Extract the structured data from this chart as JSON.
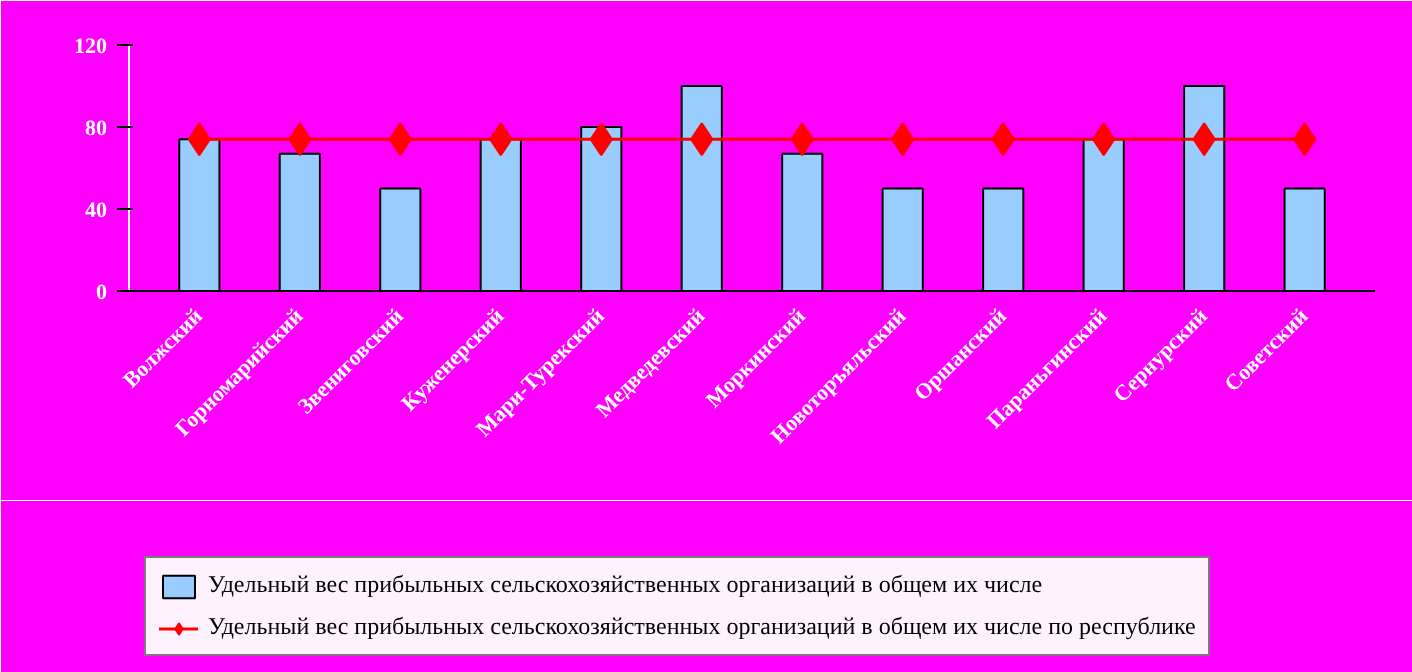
{
  "chart_data": {
    "type": "bar",
    "categories": [
      "Волжский",
      "Горномарийский",
      "Звениговский",
      "Куженерский",
      "Мари-Турекский",
      "Медведевский",
      "Моркинский",
      "Новоторъяльский",
      "Оршанский",
      "Параньгинский",
      "Сернурский",
      "Советский"
    ],
    "series": [
      {
        "name": "Удельный вес прибыльных сельскохозяйственных организаций в общем их числе",
        "color": "#99ccff",
        "values": [
          74,
          67,
          50,
          74,
          80,
          100,
          67,
          50,
          50,
          74,
          100,
          50
        ]
      },
      {
        "name": "Удельный вес прибыльных сельскохозяйственных организаций в общем их числе по республике",
        "type": "line",
        "color": "#ff0000",
        "marker": "diamond",
        "values": [
          74,
          74,
          74,
          74,
          74,
          74,
          74,
          74,
          74,
          74,
          74,
          74
        ]
      }
    ],
    "ylim": [
      0,
      120
    ],
    "yticks": [
      0,
      40,
      80,
      120
    ],
    "grid": false,
    "legend": "bottom"
  }
}
